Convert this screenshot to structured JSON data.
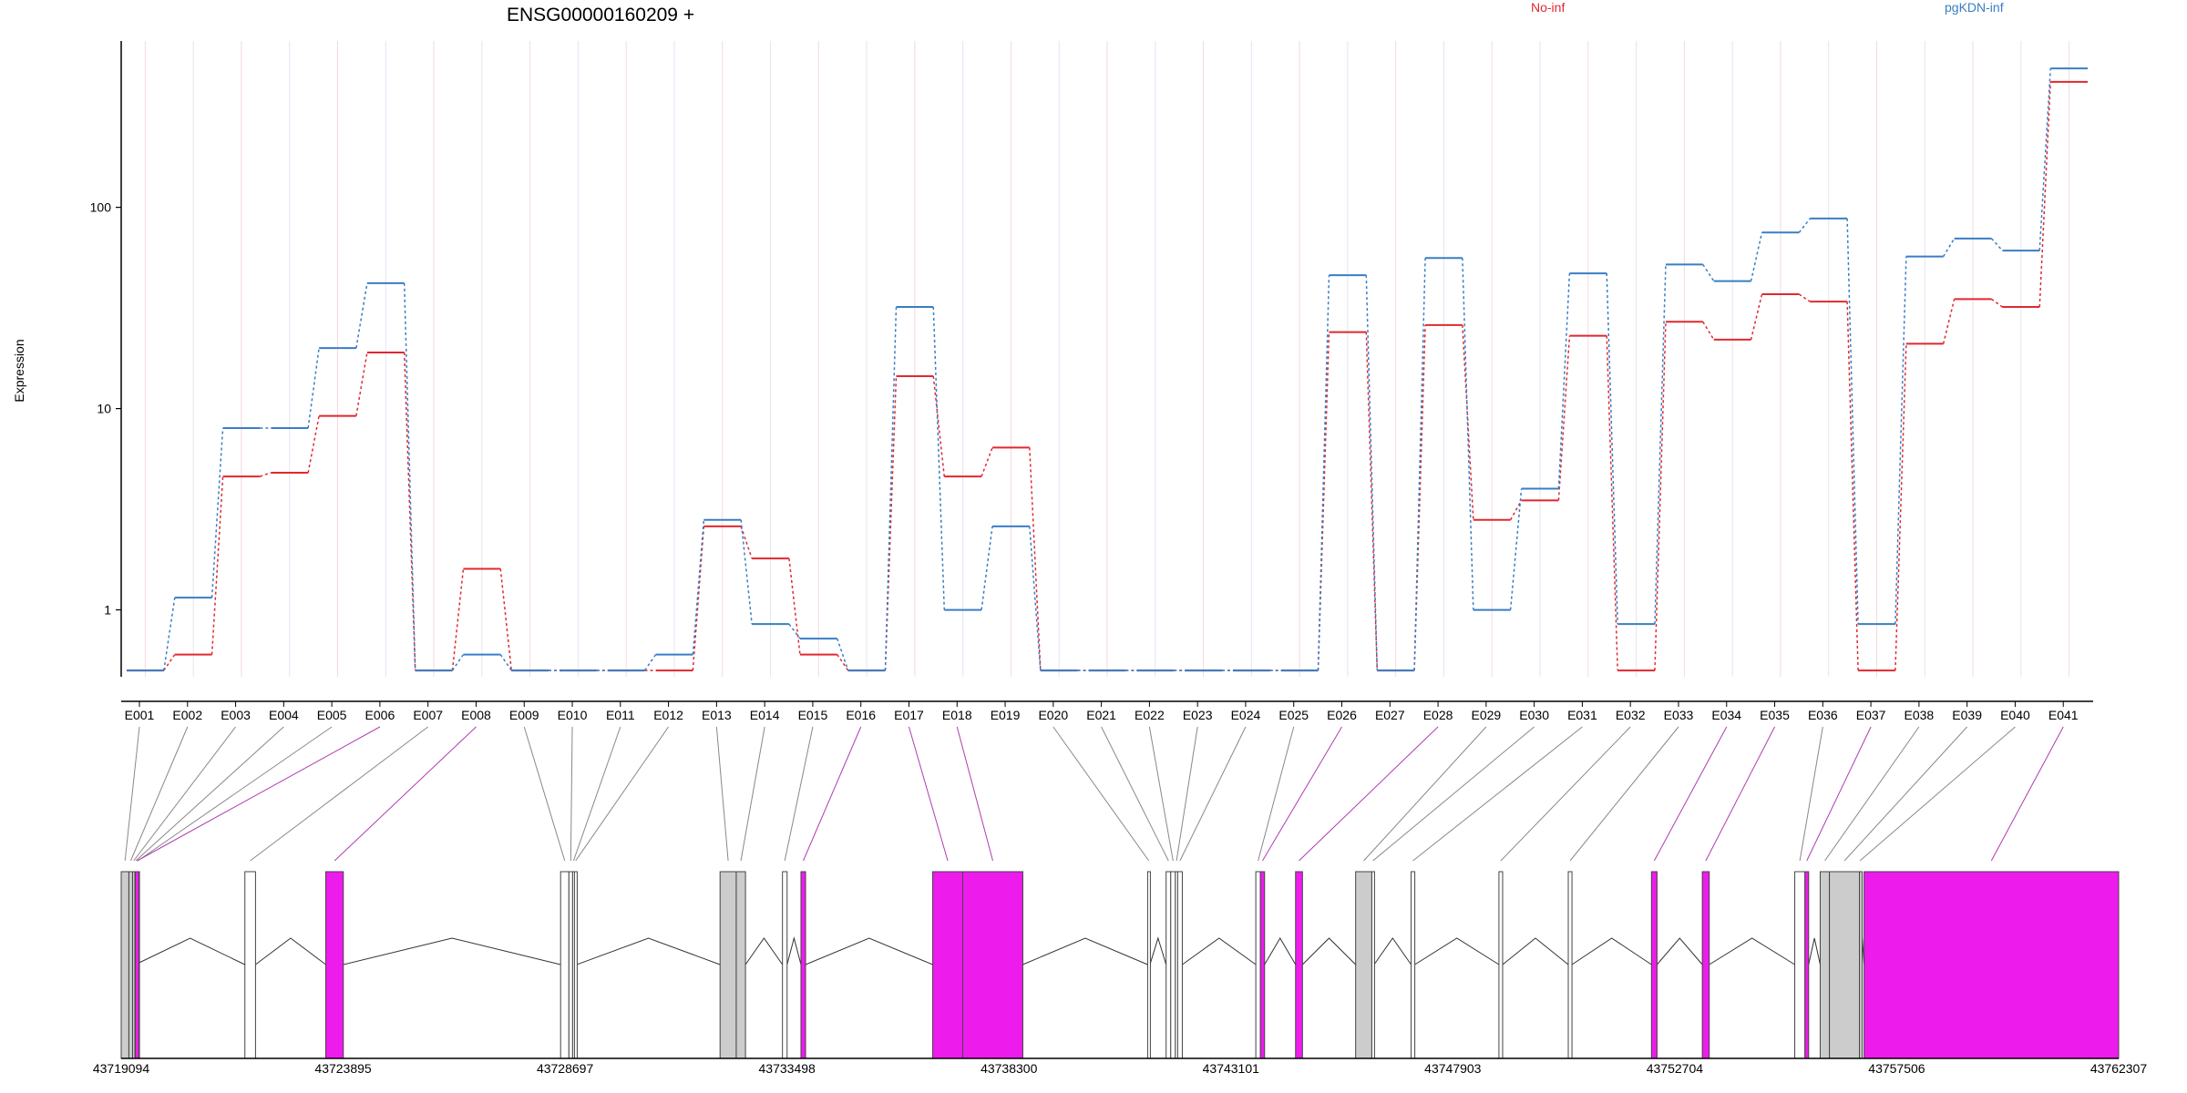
{
  "chart_data": {
    "type": "line",
    "title": "ENSG00000160209 +",
    "ylabel": "Expression",
    "yscale": "log",
    "ylim": [
      0.48,
      650
    ],
    "yticks": [
      1,
      10,
      100
    ],
    "ytick_labels": [
      "1",
      "10",
      "100"
    ],
    "grid": "vertical lines per exon",
    "legend_placement": "top",
    "categories": [
      "E001",
      "E002",
      "E003",
      "E004",
      "E005",
      "E006",
      "E007",
      "E008",
      "E009",
      "E010",
      "E011",
      "E012",
      "E013",
      "E014",
      "E015",
      "E016",
      "E017",
      "E018",
      "E019",
      "E020",
      "E021",
      "E022",
      "E023",
      "E024",
      "E025",
      "E026",
      "E027",
      "E028",
      "E029",
      "E030",
      "E031",
      "E032",
      "E033",
      "E034",
      "E035",
      "E036",
      "E037",
      "E038",
      "E039",
      "E040",
      "E041"
    ],
    "series": [
      {
        "name": "No-inf",
        "color": "#e0282f",
        "style": "solid-steps dotted-connectors",
        "values": [
          0.5,
          0.6,
          4.6,
          4.8,
          9.2,
          19,
          0.5,
          1.6,
          0.5,
          0.5,
          0.5,
          0.5,
          2.6,
          1.8,
          0.6,
          0.5,
          14.5,
          4.6,
          6.4,
          0.5,
          0.5,
          0.5,
          0.5,
          0.5,
          0.5,
          24,
          0.5,
          26,
          2.8,
          3.5,
          23,
          0.5,
          27,
          22,
          37,
          34,
          0.5,
          21,
          35,
          32,
          420
        ]
      },
      {
        "name": "pgKDN-inf",
        "color": "#3a7dc4",
        "style": "solid-steps dotted-connectors",
        "values": [
          0.5,
          1.15,
          8,
          8,
          20,
          42,
          0.5,
          0.6,
          0.5,
          0.5,
          0.5,
          0.6,
          2.8,
          0.85,
          0.72,
          0.5,
          32,
          1,
          2.6,
          0.5,
          0.5,
          0.5,
          0.5,
          0.5,
          0.5,
          46,
          0.5,
          56,
          1,
          4,
          47,
          0.85,
          52,
          43,
          75,
          88,
          0.85,
          57,
          70,
          61,
          490
        ]
      }
    ],
    "gene_model": {
      "coord_labels": [
        "43719094",
        "43723895",
        "43728697",
        "43733498",
        "43738300",
        "43743101",
        "43747903",
        "43752704",
        "43757506",
        "43762307"
      ],
      "start": 43719094,
      "end": 43762307,
      "exons": [
        {
          "start": 43719094,
          "end": 43719260,
          "fill": "grey",
          "id": "E001"
        },
        {
          "start": 43719260,
          "end": 43719340,
          "fill": "grey",
          "id": "E002"
        },
        {
          "start": 43719340,
          "end": 43719390,
          "fill": "grey",
          "id": "E003"
        },
        {
          "start": 43719390,
          "end": 43719430,
          "fill": "grey",
          "id": "E004"
        },
        {
          "start": 43719430,
          "end": 43719480,
          "fill": "grey",
          "id": "E005"
        },
        {
          "start": 43719480,
          "end": 43719400,
          "fill": "magenta",
          "id": "E006"
        },
        {
          "start": 43721770,
          "end": 43722000,
          "fill": "white",
          "id": "E007"
        },
        {
          "start": 43723520,
          "end": 43723900,
          "fill": "magenta",
          "id": "E008"
        },
        {
          "start": 43728600,
          "end": 43728780,
          "fill": "white",
          "id": "E009"
        },
        {
          "start": 43728780,
          "end": 43728860,
          "fill": "white",
          "id": "E010"
        },
        {
          "start": 43728860,
          "end": 43728900,
          "fill": "white",
          "id": "E011"
        },
        {
          "start": 43728900,
          "end": 43728950,
          "fill": "white",
          "id": "E012"
        },
        {
          "start": 43732050,
          "end": 43732400,
          "fill": "grey",
          "id": "E013"
        },
        {
          "start": 43732400,
          "end": 43732600,
          "fill": "grey",
          "id": "E014"
        },
        {
          "start": 43733400,
          "end": 43733500,
          "fill": "white",
          "id": "E015"
        },
        {
          "start": 43733800,
          "end": 43733900,
          "fill": "magenta",
          "id": "E016"
        },
        {
          "start": 43736650,
          "end": 43737300,
          "fill": "magenta",
          "id": "E017"
        },
        {
          "start": 43737300,
          "end": 43738600,
          "fill": "magenta",
          "id": "E018"
        },
        {
          "start": 43741300,
          "end": 43741350,
          "fill": "white",
          "id": "E020"
        },
        {
          "start": 43741700,
          "end": 43741800,
          "fill": "white",
          "id": "E021"
        },
        {
          "start": 43741800,
          "end": 43741900,
          "fill": "white",
          "id": "E022"
        },
        {
          "start": 43741900,
          "end": 43741950,
          "fill": "white",
          "id": "E023"
        },
        {
          "start": 43741950,
          "end": 43742050,
          "fill": "white",
          "id": "E024"
        },
        {
          "start": 43743640,
          "end": 43743740,
          "fill": "white",
          "id": "E025"
        },
        {
          "start": 43743740,
          "end": 43743830,
          "fill": "magenta",
          "id": "E026"
        },
        {
          "start": 43744500,
          "end": 43744650,
          "fill": "magenta",
          "id": "E028"
        },
        {
          "start": 43745800,
          "end": 43746150,
          "fill": "grey",
          "id": "E029"
        },
        {
          "start": 43746150,
          "end": 43746200,
          "fill": "white",
          "id": "E030"
        },
        {
          "start": 43747000,
          "end": 43747080,
          "fill": "white",
          "id": "E031"
        },
        {
          "start": 43748900,
          "end": 43748980,
          "fill": "white",
          "id": "E032"
        },
        {
          "start": 43750400,
          "end": 43750480,
          "fill": "white",
          "id": "E033"
        },
        {
          "start": 43752200,
          "end": 43752320,
          "fill": "magenta",
          "id": "E034"
        },
        {
          "start": 43753300,
          "end": 43753450,
          "fill": "magenta",
          "id": "E035"
        },
        {
          "start": 43755300,
          "end": 43755520,
          "fill": "white",
          "id": "E036"
        },
        {
          "start": 43755520,
          "end": 43755600,
          "fill": "magenta",
          "id": "E037"
        },
        {
          "start": 43755850,
          "end": 43756050,
          "fill": "grey",
          "id": "E038"
        },
        {
          "start": 43756050,
          "end": 43756700,
          "fill": "grey",
          "id": "E039"
        },
        {
          "start": 43756700,
          "end": 43756720,
          "fill": "grey",
          "id": "E040"
        },
        {
          "start": 43756800,
          "end": 43762307,
          "fill": "magenta",
          "id": "E041"
        }
      ]
    }
  }
}
